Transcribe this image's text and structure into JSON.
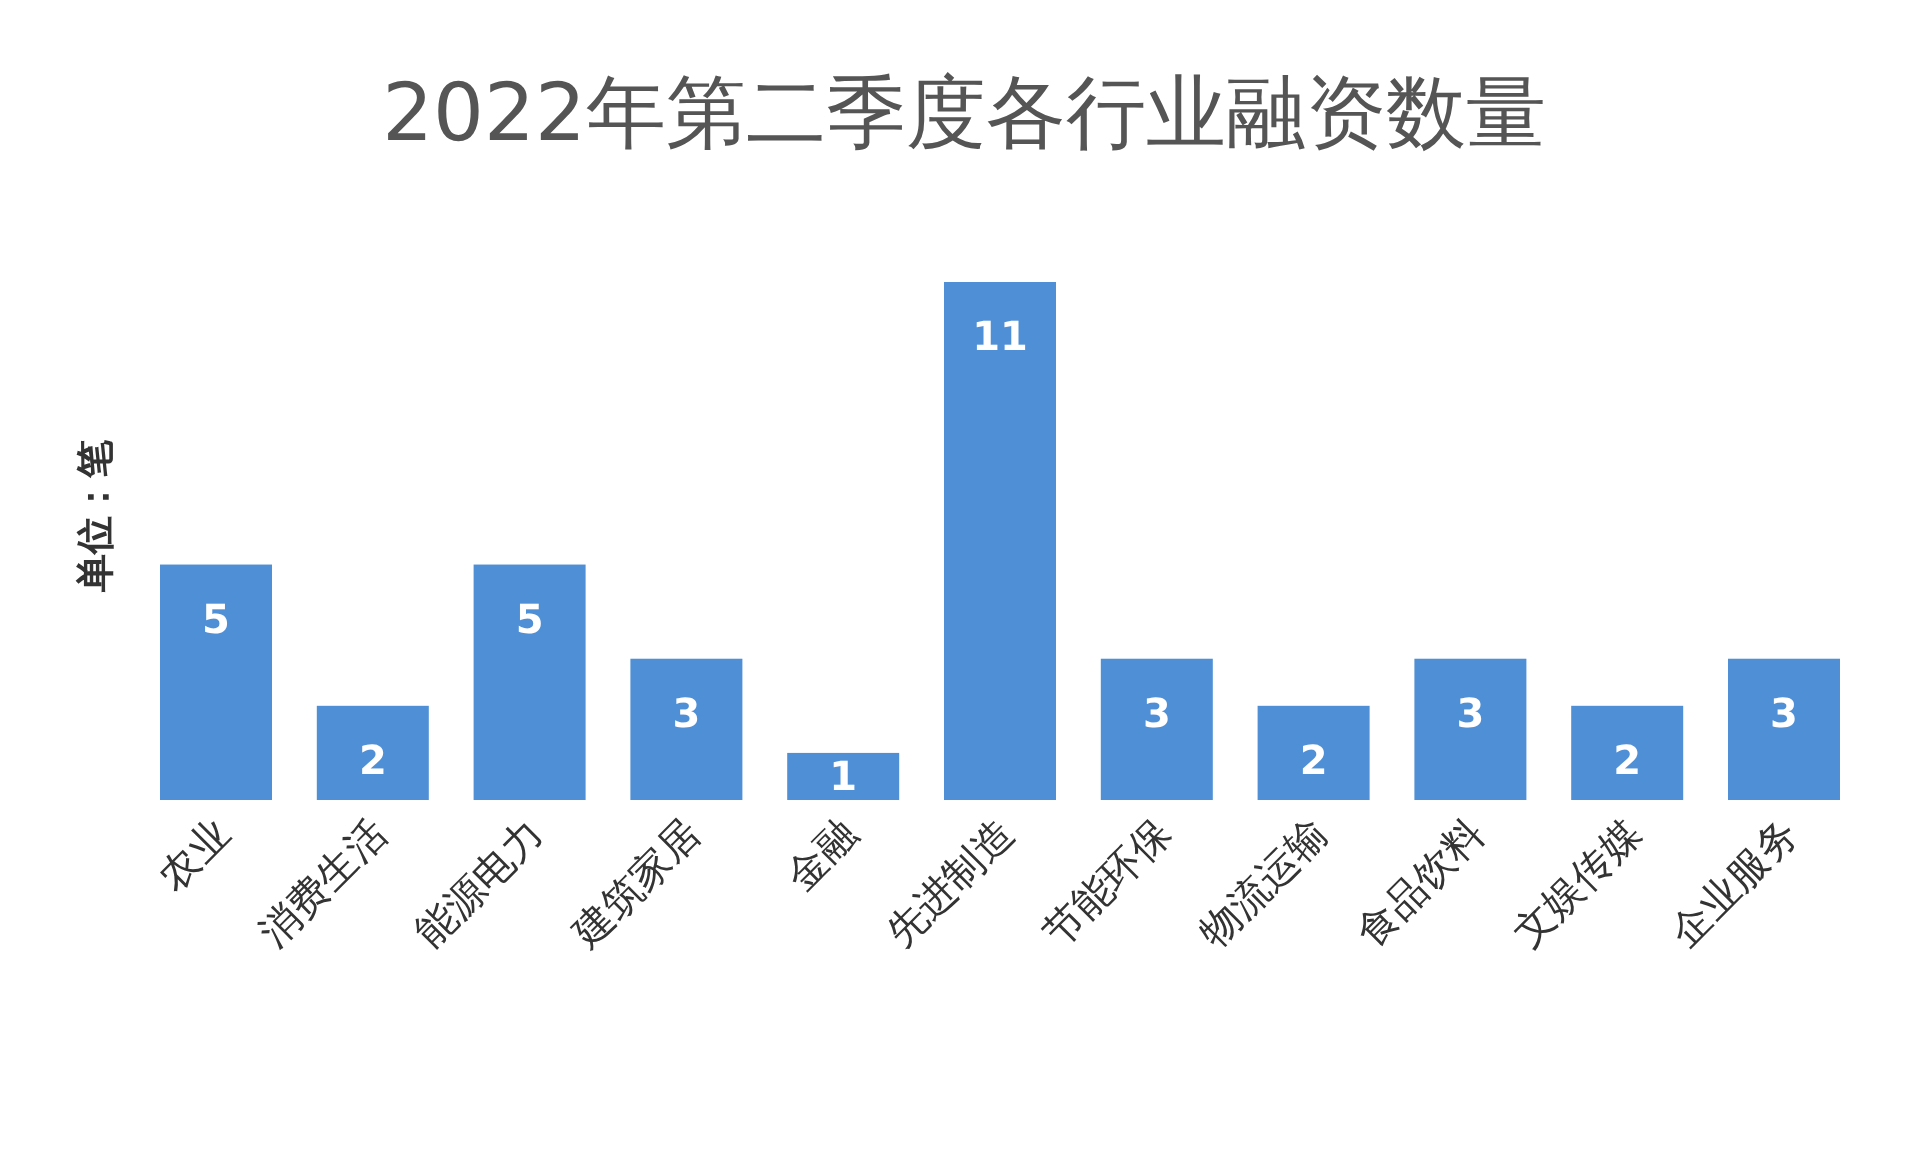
{
  "chart_data": {
    "type": "bar",
    "title": "2022年第二季度各行业融资数量",
    "ylabel": "单位：笔",
    "categories": [
      "农业",
      "消费生活",
      "能源电力",
      "建筑家居",
      "金融",
      "先进制造",
      "节能环保",
      "物流运输",
      "食品饮料",
      "文娱传媒",
      "企业服务"
    ],
    "values": [
      5,
      2,
      5,
      3,
      1,
      11,
      3,
      2,
      3,
      2,
      3
    ],
    "color": "#4f8fd6",
    "data_labels": true
  }
}
